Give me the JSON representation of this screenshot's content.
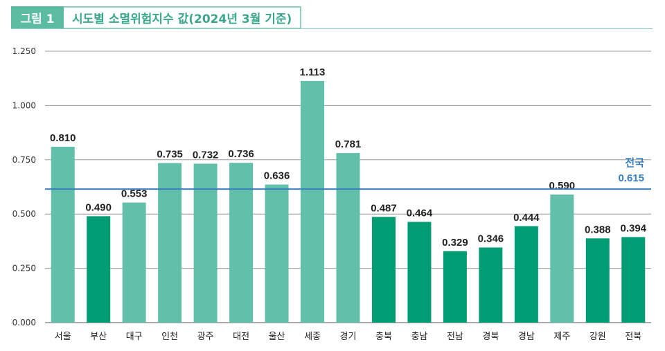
{
  "header": {
    "label": "그림 1",
    "title": "시도별 소멸위험지수 값(2024년 3월 기준)"
  },
  "chart_data": {
    "type": "bar",
    "title": "시도별 소멸위험지수 값(2024년 3월 기준)",
    "xlabel": "",
    "ylabel": "",
    "ylim": [
      0,
      1.25
    ],
    "yticks": [
      "0.000",
      "0.250",
      "0.500",
      "0.750",
      "1.000",
      "1.250"
    ],
    "grid": true,
    "categories": [
      "서울",
      "부산",
      "대구",
      "인천",
      "광주",
      "대전",
      "울산",
      "세종",
      "경기",
      "충북",
      "충남",
      "전남",
      "경북",
      "경남",
      "제주",
      "강원",
      "전북"
    ],
    "values": [
      0.81,
      0.49,
      0.553,
      0.735,
      0.732,
      0.736,
      0.636,
      1.113,
      0.781,
      0.487,
      0.464,
      0.329,
      0.346,
      0.444,
      0.59,
      0.388,
      0.394
    ],
    "value_labels": [
      "0.810",
      "0.490",
      "0.553",
      "0.735",
      "0.732",
      "0.736",
      "0.636",
      "1.113",
      "0.781",
      "0.487",
      "0.464",
      "0.329",
      "0.346",
      "0.444",
      "0.590",
      "0.388",
      "0.394"
    ],
    "bar_colors": [
      "#62bfa9",
      "#009c74",
      "#62bfa9",
      "#62bfa9",
      "#62bfa9",
      "#62bfa9",
      "#62bfa9",
      "#62bfa9",
      "#62bfa9",
      "#009c74",
      "#009c74",
      "#009c74",
      "#009c74",
      "#009c74",
      "#62bfa9",
      "#009c74",
      "#009c74"
    ],
    "reference_line": {
      "name": "전국",
      "value": 0.615,
      "label": "0.615",
      "color": "#3a7fc0"
    }
  }
}
